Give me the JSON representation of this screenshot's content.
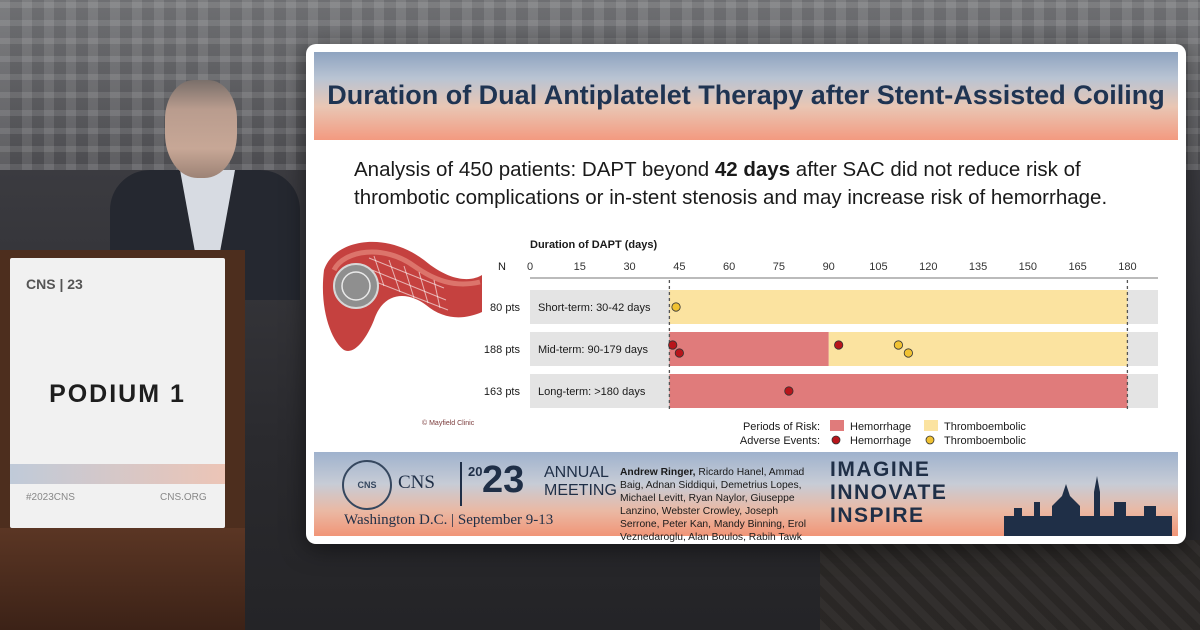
{
  "podium": {
    "label": "PODIUM 1",
    "logo": "CNS | 23",
    "foot_left": "#2023CNS",
    "foot_right": "CNS.ORG"
  },
  "slide": {
    "title": "Duration of Dual Antiplatelet Therapy after Stent-Assisted Coiling",
    "summary_part1": "Analysis of 450 patients: DAPT beyond ",
    "summary_bold": "42 days",
    "summary_part2": " after SAC did not reduce risk of thrombotic complications or in-stent stenosis and may increase risk of hemorrhage.",
    "image_credit": "© Mayfield Clinic"
  },
  "chart_data": {
    "type": "bar",
    "title": "",
    "xlabel": "Duration of DAPT (days)",
    "n_header": "N",
    "xlim": [
      0,
      185
    ],
    "xticks": [
      0,
      15,
      30,
      45,
      60,
      75,
      90,
      105,
      120,
      135,
      150,
      165,
      180
    ],
    "dashed_markers": [
      42,
      180
    ],
    "rows": [
      {
        "n": "80 pts",
        "label": "Short-term: 30-42 days",
        "periods": [
          {
            "type": "Thromboembolic",
            "from": 42,
            "to": 180
          }
        ],
        "events": [
          {
            "type": "Thromboembolic",
            "day": 44,
            "offset": 0
          }
        ]
      },
      {
        "n": "188 pts",
        "label": "Mid-term: 90-179 days",
        "periods": [
          {
            "type": "Hemorrhage",
            "from": 42,
            "to": 90
          },
          {
            "type": "Thromboembolic",
            "from": 90,
            "to": 180
          }
        ],
        "events": [
          {
            "type": "Hemorrhage",
            "day": 43,
            "offset": -1
          },
          {
            "type": "Hemorrhage",
            "day": 45,
            "offset": 1
          },
          {
            "type": "Hemorrhage",
            "day": 93,
            "offset": -1
          },
          {
            "type": "Thromboembolic",
            "day": 111,
            "offset": -1
          },
          {
            "type": "Thromboembolic",
            "day": 114,
            "offset": 1
          }
        ]
      },
      {
        "n": "163 pts",
        "label": "Long-term: >180 days",
        "periods": [
          {
            "type": "Hemorrhage",
            "from": 42,
            "to": 180
          }
        ],
        "events": [
          {
            "type": "Hemorrhage",
            "day": 78,
            "offset": 0
          }
        ]
      }
    ],
    "legend": {
      "periods_label": "Periods of Risk:",
      "events_label": "Adverse Events:",
      "hemorrhage": "Hemorrhage",
      "thromboembolic": "Thromboembolic"
    },
    "colors": {
      "hemorrhage_period": "#e07b7b",
      "thromboembolic_period": "#fbe3a0",
      "hemorrhage_event": "#b8151b",
      "thromboembolic_event": "#f1c232",
      "row_bg": "#e4e4e4"
    }
  },
  "footer": {
    "cns": "CNS",
    "seal": "CNS",
    "year_small": "20",
    "year_big": "23",
    "annual": "ANNUAL",
    "meeting": "MEETING",
    "location": "Washington D.C. | September 9-13",
    "authors_lead": "Andrew Ringer,",
    "authors_rest": " Ricardo Hanel, Ammad Baig, Adnan Siddiqui, Demetrius Lopes, Michael Levitt, Ryan Naylor, Giuseppe Lanzino, Webster Crowley, Joseph Serrone, Peter Kan, Mandy Binning, Erol Veznedaroglu, Alan Boulos, Rabih Tawk",
    "tag1": "IMAGINE",
    "tag2": "INNOVATE",
    "tag3": "INSPIRE"
  }
}
